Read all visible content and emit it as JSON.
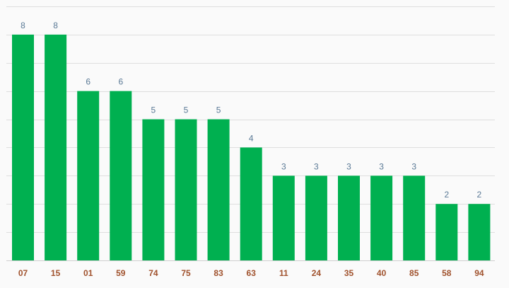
{
  "colors": {
    "background": "#fafafa",
    "bar": "#00b050",
    "grid": "#dedede",
    "data_label": "#5b7a96",
    "tick_label": "#a0522d"
  },
  "chart_data": {
    "type": "bar",
    "categories": [
      "07",
      "15",
      "01",
      "59",
      "74",
      "75",
      "83",
      "63",
      "11",
      "24",
      "35",
      "40",
      "85",
      "58",
      "94"
    ],
    "values": [
      8,
      8,
      6,
      6,
      5,
      5,
      5,
      4,
      3,
      3,
      3,
      3,
      3,
      2,
      2
    ],
    "title": "",
    "xlabel": "",
    "ylabel": "",
    "ylim": [
      0,
      9
    ],
    "grid": true,
    "data_labels": true,
    "legend": "none"
  }
}
